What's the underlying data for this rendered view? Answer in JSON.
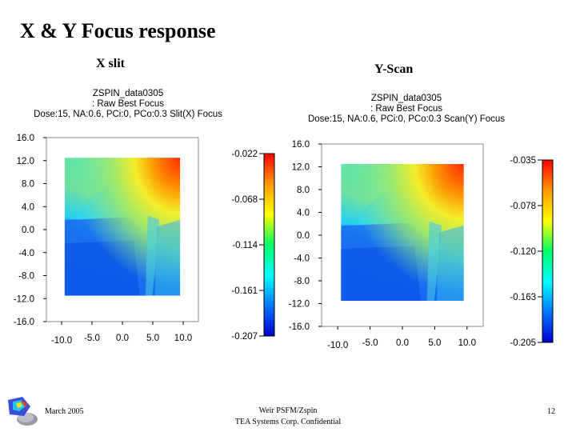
{
  "slide": {
    "title": "X & Y Focus response",
    "x_subtitle": "X slit",
    "y_subtitle": "Y-Scan",
    "footer_date": "March 2005",
    "footer_line1": "Weir PSFM/Zspin",
    "footer_line2": "TEA Systems Corp. Confidential",
    "page_number": "12"
  },
  "colors": {
    "colorbar": [
      "#ff0000",
      "#ff9900",
      "#ffff00",
      "#00ff66",
      "#00ffff",
      "#0077ff",
      "#0000cc"
    ],
    "heatmap_low": "#1a66ee",
    "heatmap_high": "#ff3300"
  },
  "chart_data": [
    {
      "type": "heatmap",
      "title_lines": [
        "ZSPIN_data0305",
        ": Raw Best Focus",
        "Dose:15, NA:0.6, PCi:0, PCo:0.3 Slit(X) Focus"
      ],
      "x_ticks": [
        "-10.0",
        "-5.0",
        "0.0",
        "5.0",
        "10.0"
      ],
      "y_ticks": [
        "16.0",
        "12.0",
        "8.0",
        "4.0",
        "0.0",
        "-4.0",
        "-8.0",
        "-12.0",
        "-16.0"
      ],
      "xlim": [
        -12.5,
        12.5
      ],
      "ylim": [
        -16,
        16
      ],
      "data_extent": {
        "x": [
          -9.5,
          9.5
        ],
        "y": [
          -11.5,
          12.5
        ]
      },
      "colorbar_ticks": [
        "-0.022",
        "-0.068",
        "-0.114",
        "-0.161",
        "-0.207"
      ],
      "colorbar_range": [
        -0.207,
        -0.022
      ]
    },
    {
      "type": "heatmap",
      "title_lines": [
        "ZSPIN_data0305",
        ": Raw Best Focus",
        "Dose:15, NA:0.6, PCi:0, PCo:0.3 Scan(Y) Focus"
      ],
      "x_ticks": [
        "-10.0",
        "-5.0",
        "0.0",
        "5.0",
        "10.0"
      ],
      "y_ticks": [
        "16.0",
        "12.0",
        "8.0",
        "4.0",
        "0.0",
        "-4.0",
        "-8.0",
        "-12.0",
        "-16.0"
      ],
      "xlim": [
        -12.5,
        12.5
      ],
      "ylim": [
        -16,
        16
      ],
      "data_extent": {
        "x": [
          -9.5,
          9.5
        ],
        "y": [
          -11.5,
          12.5
        ]
      },
      "colorbar_ticks": [
        "-0.035",
        "-0.078",
        "-0.120",
        "-0.163",
        "-0.205"
      ],
      "colorbar_range": [
        -0.205,
        -0.035
      ]
    }
  ]
}
